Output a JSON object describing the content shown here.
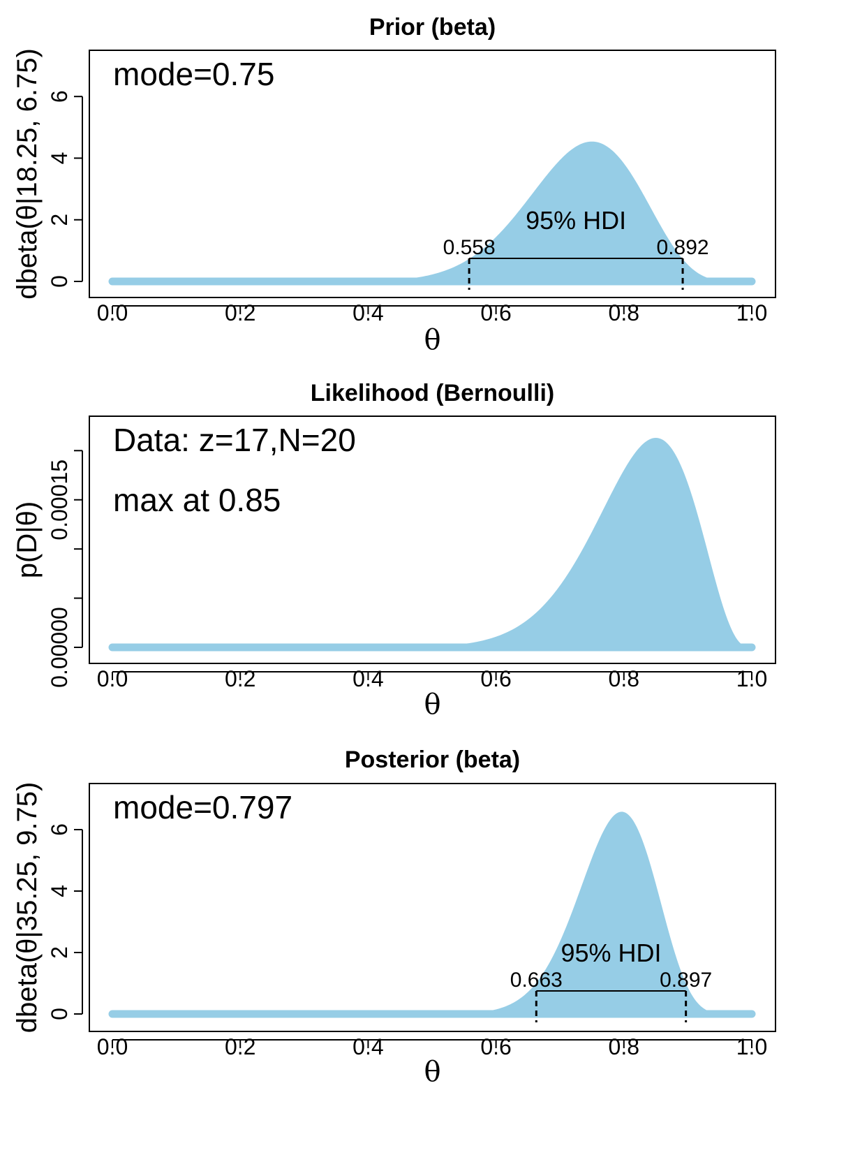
{
  "colors": {
    "fill": "#96cde6",
    "axis": "#000000"
  },
  "chart_data": [
    {
      "type": "area",
      "title": "Prior (beta)",
      "xlabel": "θ",
      "ylabel": "dbeta(θ|18.25, 6.75)",
      "distribution": {
        "kind": "beta",
        "a": 18.25,
        "b": 6.75
      },
      "xlim": [
        0,
        1
      ],
      "ylim": [
        0,
        7.5
      ],
      "xticks": [
        0.0,
        0.2,
        0.4,
        0.6,
        0.8,
        1.0
      ],
      "xtick_labels": [
        "0.0",
        "0.2",
        "0.4",
        "0.6",
        "0.8",
        "1.0"
      ],
      "yticks": [
        0,
        2,
        4,
        6
      ],
      "ytick_labels": [
        "0",
        "2",
        "4",
        "6"
      ],
      "annotations": [
        "mode=0.75"
      ],
      "hdi": {
        "label": "95% HDI",
        "low": 0.558,
        "high": 0.892,
        "low_label": "0.558",
        "high_label": "0.892"
      },
      "grid": false
    },
    {
      "type": "area",
      "title": "Likelihood (Bernoulli)",
      "xlabel": "θ",
      "ylabel": "p(D|θ)",
      "distribution": {
        "kind": "bernoulli",
        "z": 17,
        "N": 20
      },
      "xlim": [
        0,
        1
      ],
      "ylim": [
        0,
        0.000235
      ],
      "xticks": [
        0.0,
        0.2,
        0.4,
        0.6,
        0.8,
        1.0
      ],
      "xtick_labels": [
        "0.0",
        "0.2",
        "0.4",
        "0.6",
        "0.8",
        "1.0"
      ],
      "yticks": [
        0,
        5e-05,
        0.0001,
        0.00015,
        0.0002
      ],
      "ytick_labels": [
        "0.00000",
        "",
        "",
        "0.00015",
        ""
      ],
      "annotations": [
        "Data: z=17,N=20",
        "max at 0.85"
      ],
      "grid": false
    },
    {
      "type": "area",
      "title": "Posterior (beta)",
      "xlabel": "θ",
      "ylabel": "dbeta(θ|35.25, 9.75)",
      "distribution": {
        "kind": "beta",
        "a": 35.25,
        "b": 9.75
      },
      "xlim": [
        0,
        1
      ],
      "ylim": [
        0,
        7.5
      ],
      "xticks": [
        0.0,
        0.2,
        0.4,
        0.6,
        0.8,
        1.0
      ],
      "xtick_labels": [
        "0.0",
        "0.2",
        "0.4",
        "0.6",
        "0.8",
        "1.0"
      ],
      "yticks": [
        0,
        2,
        4,
        6
      ],
      "ytick_labels": [
        "0",
        "2",
        "4",
        "6"
      ],
      "annotations": [
        "mode=0.797"
      ],
      "hdi": {
        "label": "95% HDI",
        "low": 0.663,
        "high": 0.897,
        "low_label": "0.663",
        "high_label": "0.897"
      },
      "grid": false
    }
  ]
}
